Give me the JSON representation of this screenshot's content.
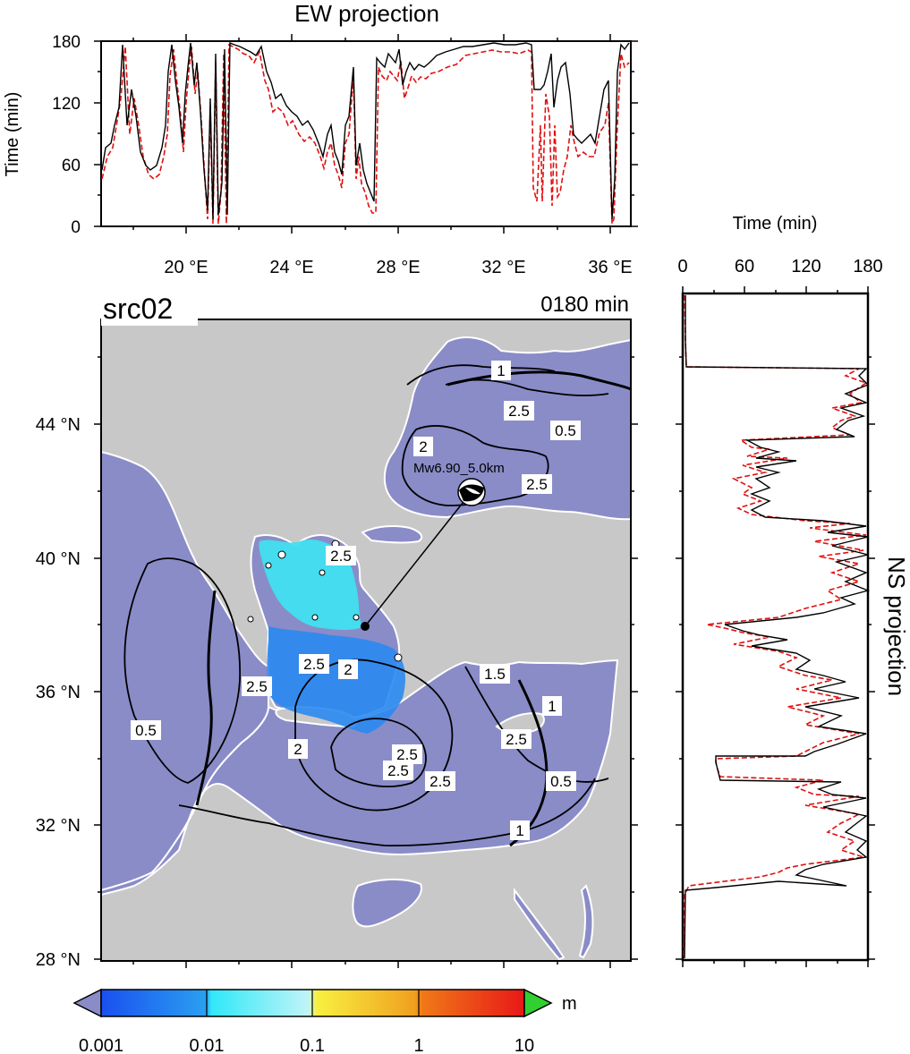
{
  "ew_panel": {
    "title": "EW projection",
    "ylabel": "Time (min)",
    "yticks": [
      "0",
      "60",
      "120",
      "180"
    ],
    "xticks": [
      "20 °E",
      "24 °E",
      "28 °E",
      "32 °E",
      "36 °E"
    ]
  },
  "ns_panel": {
    "title": "NS projection",
    "xlabel": "Time (min)",
    "xticks": [
      "0",
      "60",
      "120",
      "180"
    ]
  },
  "map": {
    "source_label": "src02",
    "time_label": "0180 min",
    "event_label": "Mw6.90_5.0km",
    "lat_ticks": [
      "44 °N",
      "40 °N",
      "36 °N",
      "32 °N",
      "28 °N"
    ],
    "contour_labels": [
      "1",
      "2.5",
      "0.5",
      "2",
      "2.5",
      "2.5",
      "2",
      "2.5",
      "0.5",
      "2.5",
      "2.5",
      "2.5",
      "1",
      "0.5",
      "1",
      "2.5",
      "2",
      "1.5",
      "2.5"
    ],
    "colors": {
      "sea": "#8a8cc8",
      "land": "#c8c8c8"
    }
  },
  "colorbar": {
    "unit": "m",
    "tick_labels": [
      "0.001",
      "0.01",
      "0.1",
      "1",
      "10"
    ],
    "colors": [
      "#1a5ef0",
      "#40d8f0",
      "#f8f040",
      "#f07820",
      "#e81818"
    ],
    "lower_triangle_color": "#8a8cc8",
    "upper_triangle_color": "#30d030"
  }
}
